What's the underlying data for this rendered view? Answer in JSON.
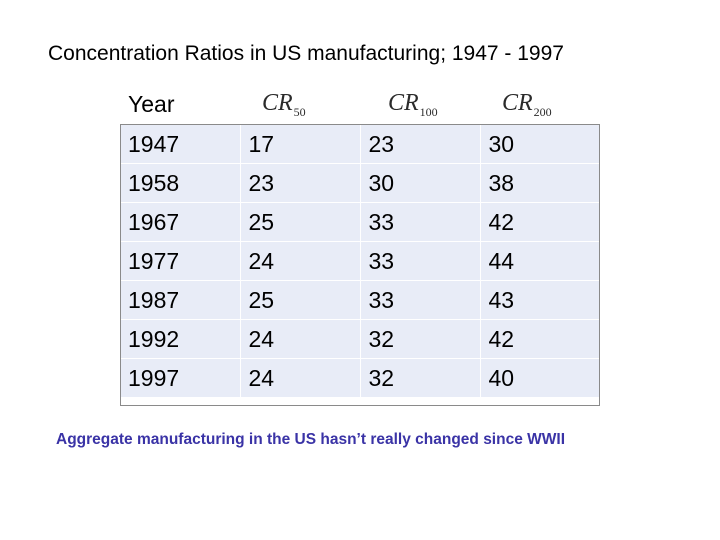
{
  "title": "Concentration Ratios in US manufacturing; 1947 - 1997",
  "table": {
    "headers": [
      {
        "base": "Year",
        "sub": ""
      },
      {
        "base": "CR",
        "sub": "50"
      },
      {
        "base": "CR",
        "sub": "100"
      },
      {
        "base": "CR",
        "sub": "200"
      }
    ],
    "rows": [
      [
        "1947",
        "17",
        "23",
        "30"
      ],
      [
        "1958",
        "23",
        "30",
        "38"
      ],
      [
        "1967",
        "25",
        "33",
        "42"
      ],
      [
        "1977",
        "24",
        "33",
        "44"
      ],
      [
        "1987",
        "25",
        "33",
        "43"
      ],
      [
        "1992",
        "24",
        "32",
        "42"
      ],
      [
        "1997",
        "24",
        "32",
        "40"
      ]
    ]
  },
  "caption": "Aggregate manufacturing in the US hasn’t really changed since WWII",
  "colors": {
    "cell_fill": "#e8ecf7",
    "caption_text": "#3a33a6",
    "border": "#8a8a8a"
  }
}
